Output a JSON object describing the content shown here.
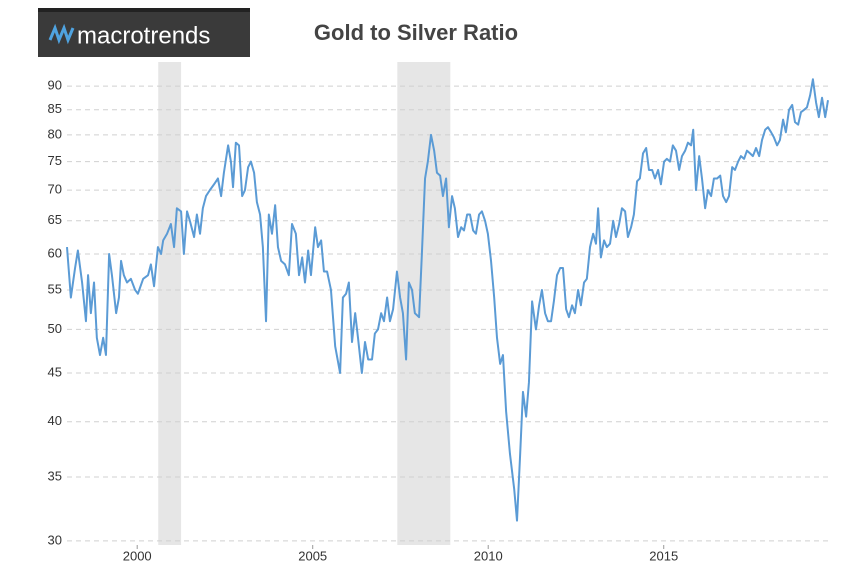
{
  "brand": "macrotrends",
  "chart_data": {
    "type": "line",
    "title": "Gold to Silver Ratio",
    "log_scale": true,
    "grid": true,
    "xlim": [
      1998,
      2019.68
    ],
    "xticks": [
      2000,
      2005,
      2010,
      2015
    ],
    "ylim": [
      29.7,
      95.4
    ],
    "yticks": [
      30,
      35,
      40,
      45,
      50,
      55,
      60,
      65,
      70,
      75,
      80,
      85,
      90
    ],
    "recession_color": "#e6e6e6",
    "recessions": [
      [
        2000.6,
        2001.25
      ],
      [
        2007.41,
        2008.92
      ]
    ],
    "x": [
      1998.0,
      1998.11,
      1998.23,
      1998.31,
      1998.43,
      1998.54,
      1998.6,
      1998.68,
      1998.77,
      1998.85,
      1998.94,
      1999.03,
      1999.11,
      1999.2,
      1999.28,
      1999.4,
      1999.48,
      1999.54,
      1999.62,
      1999.71,
      1999.82,
      1999.94,
      2000.02,
      2000.17,
      2000.31,
      2000.39,
      2000.48,
      2000.59,
      2000.68,
      2000.74,
      2000.85,
      2000.96,
      2001.05,
      2001.13,
      2001.25,
      2001.33,
      2001.42,
      2001.5,
      2001.62,
      2001.7,
      2001.79,
      2001.87,
      2001.96,
      2002.07,
      2002.19,
      2002.3,
      2002.39,
      2002.47,
      2002.59,
      2002.67,
      2002.73,
      2002.81,
      2002.9,
      2002.99,
      2003.07,
      2003.16,
      2003.24,
      2003.33,
      2003.41,
      2003.5,
      2003.58,
      2003.67,
      2003.75,
      2003.84,
      2003.93,
      2004.01,
      2004.1,
      2004.21,
      2004.32,
      2004.41,
      2004.52,
      2004.61,
      2004.7,
      2004.78,
      2004.87,
      2004.95,
      2005.07,
      2005.15,
      2005.24,
      2005.32,
      2005.41,
      2005.52,
      2005.64,
      2005.78,
      2005.86,
      2005.95,
      2006.03,
      2006.12,
      2006.21,
      2006.29,
      2006.4,
      2006.49,
      2006.58,
      2006.69,
      2006.77,
      2006.86,
      2006.95,
      2007.03,
      2007.12,
      2007.2,
      2007.29,
      2007.4,
      2007.49,
      2007.57,
      2007.66,
      2007.74,
      2007.83,
      2007.91,
      2008.03,
      2008.11,
      2008.2,
      2008.28,
      2008.37,
      2008.46,
      2008.54,
      2008.63,
      2008.71,
      2008.8,
      2008.88,
      2008.97,
      2009.05,
      2009.14,
      2009.23,
      2009.31,
      2009.4,
      2009.48,
      2009.57,
      2009.65,
      2009.74,
      2009.82,
      2009.91,
      2009.99,
      2010.08,
      2010.17,
      2010.25,
      2010.34,
      2010.42,
      2010.51,
      2010.62,
      2010.74,
      2010.82,
      2010.91,
      2010.99,
      2011.08,
      2011.16,
      2011.25,
      2011.36,
      2011.45,
      2011.53,
      2011.62,
      2011.7,
      2011.79,
      2011.87,
      2011.96,
      2012.05,
      2012.13,
      2012.22,
      2012.3,
      2012.39,
      2012.47,
      2012.56,
      2012.64,
      2012.73,
      2012.81,
      2012.9,
      2012.99,
      2013.07,
      2013.13,
      2013.21,
      2013.3,
      2013.38,
      2013.47,
      2013.56,
      2013.64,
      2013.73,
      2013.81,
      2013.9,
      2013.98,
      2014.07,
      2014.15,
      2014.24,
      2014.32,
      2014.41,
      2014.5,
      2014.58,
      2014.67,
      2014.75,
      2014.84,
      2014.92,
      2015.01,
      2015.09,
      2015.18,
      2015.26,
      2015.35,
      2015.44,
      2015.52,
      2015.61,
      2015.69,
      2015.78,
      2015.84,
      2015.92,
      2016.01,
      2016.09,
      2016.18,
      2016.26,
      2016.35,
      2016.43,
      2016.52,
      2016.61,
      2016.69,
      2016.78,
      2016.86,
      2016.95,
      2017.03,
      2017.12,
      2017.2,
      2017.29,
      2017.37,
      2017.46,
      2017.54,
      2017.63,
      2017.72,
      2017.8,
      2017.89,
      2017.97,
      2018.06,
      2018.14,
      2018.23,
      2018.31,
      2018.4,
      2018.48,
      2018.57,
      2018.66,
      2018.74,
      2018.83,
      2018.91,
      2019.0,
      2019.08,
      2019.17,
      2019.25,
      2019.34,
      2019.42,
      2019.51,
      2019.6,
      2019.68
    ],
    "series": [
      {
        "color": "#5b9bd5",
        "values": [
          61,
          54,
          58,
          60.5,
          56,
          51,
          57,
          52,
          56,
          49,
          47,
          49,
          47,
          60,
          57,
          52,
          54,
          59,
          57,
          56,
          56.5,
          55,
          54.5,
          56.5,
          57,
          58.5,
          55.5,
          61,
          60,
          62,
          63,
          64.5,
          61,
          67,
          66.5,
          60,
          66.5,
          65,
          62.5,
          66,
          63,
          67,
          69,
          70,
          71,
          72,
          69,
          73,
          78,
          75,
          70.5,
          78.5,
          78,
          69,
          70,
          74,
          75,
          73,
          68,
          66,
          61,
          51,
          66,
          63,
          67.5,
          61,
          59,
          58.5,
          57,
          64.5,
          63,
          57,
          59.5,
          56,
          60.5,
          57,
          64,
          61,
          62,
          57.5,
          57.5,
          55,
          48,
          45,
          54,
          54.5,
          56,
          48.5,
          52,
          49,
          45,
          48.5,
          46.5,
          46.5,
          49.5,
          50,
          52,
          51,
          54,
          51,
          52.5,
          57.5,
          54,
          52,
          46.5,
          56,
          55,
          52,
          51.5,
          60,
          72,
          75,
          80,
          77,
          73,
          72.5,
          69,
          72,
          64,
          69,
          67,
          62.5,
          64,
          63.5,
          66,
          66,
          63.5,
          63,
          66,
          66.5,
          65,
          63,
          59,
          54,
          49,
          46,
          47,
          41,
          37,
          34,
          31.5,
          37,
          43,
          40.5,
          44,
          53.5,
          50,
          53,
          55,
          52,
          51,
          51,
          53.5,
          57,
          58,
          58,
          52.5,
          51.5,
          53,
          52,
          55,
          53,
          56,
          56.5,
          61,
          63,
          61.5,
          67,
          59.5,
          62,
          61,
          61.5,
          65,
          62.5,
          64.5,
          67,
          66.5,
          62.5,
          64,
          66,
          71.5,
          72,
          76.5,
          77.5,
          73.5,
          73.5,
          72,
          73.5,
          71,
          75,
          75.5,
          75,
          78,
          77,
          73.5,
          76,
          77,
          78.5,
          78,
          81,
          70,
          76,
          72,
          67,
          70,
          69,
          72,
          72,
          72.5,
          69,
          68,
          69,
          74,
          73.5,
          75,
          76,
          75.5,
          77,
          76.5,
          76,
          77.5,
          76,
          79,
          81,
          81.5,
          80.5,
          79.5,
          78,
          79,
          83,
          80.5,
          85,
          86,
          82.5,
          82,
          84.5,
          85,
          85.5,
          88,
          91.5,
          86.5,
          83.5,
          87.5,
          83.5,
          87
        ]
      }
    ]
  }
}
